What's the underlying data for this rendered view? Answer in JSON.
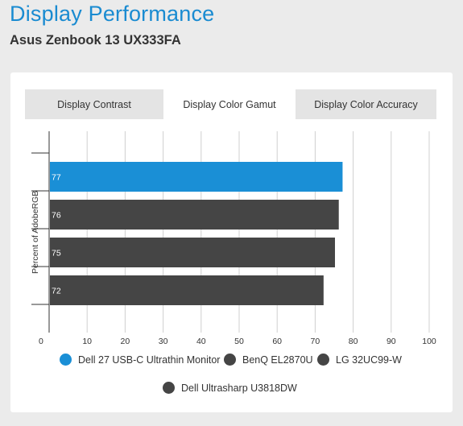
{
  "header": {
    "title": "Display Performance",
    "subtitle": "Asus Zenbook 13 UX333FA"
  },
  "tabs": [
    {
      "label": "Display Contrast",
      "active": false
    },
    {
      "label": "Display Color Gamut",
      "active": true
    },
    {
      "label": "Display Color Accuracy",
      "active": false
    }
  ],
  "colors": {
    "highlight": "#1a8fd6",
    "default": "#454545",
    "title": "#1a8bd1"
  },
  "chart_data": {
    "type": "bar",
    "orientation": "horizontal",
    "ylabel": "Percent of AdobeRGB",
    "xlim": [
      0,
      100
    ],
    "xticks": [
      0,
      10,
      20,
      30,
      40,
      50,
      60,
      70,
      80,
      90,
      100
    ],
    "grid": true,
    "legend_position": "bottom",
    "series": [
      {
        "name": "Dell 27 USB-C Ultrathin Monitor",
        "value": 77,
        "color": "#1a8fd6"
      },
      {
        "name": "BenQ EL2870U",
        "value": 76,
        "color": "#454545"
      },
      {
        "name": "LG 32UC99-W",
        "value": 75,
        "color": "#454545"
      },
      {
        "name": "Dell Ultrasharp U3818DW",
        "value": 72,
        "color": "#454545"
      }
    ]
  }
}
